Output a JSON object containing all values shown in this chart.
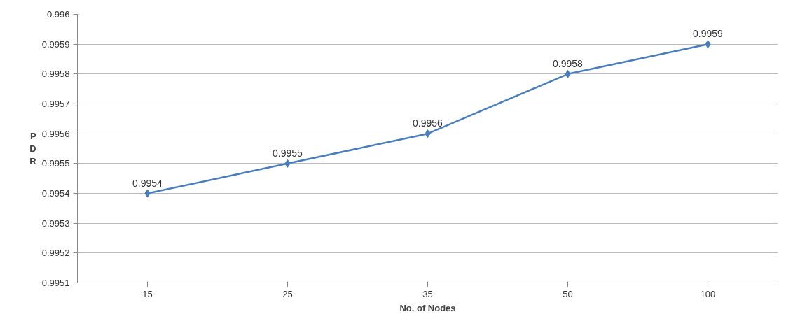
{
  "chart_data": {
    "type": "line",
    "xlabel": "No. of Nodes",
    "ylabel": "PDR",
    "categories": [
      "15",
      "25",
      "35",
      "50",
      "100"
    ],
    "series": [
      {
        "color": "#4a7ebb",
        "values": [
          0.9954,
          0.9955,
          0.9956,
          0.9958,
          0.9959
        ]
      }
    ],
    "ylim": [
      0.9951,
      0.996
    ],
    "yticks": [
      0.9951,
      0.9952,
      0.9953,
      0.9954,
      0.9955,
      0.9956,
      0.9957,
      0.9958,
      0.9959,
      0.996
    ],
    "grid": "y",
    "marker": "diamond",
    "line_style": "solid",
    "data_labels": true
  }
}
